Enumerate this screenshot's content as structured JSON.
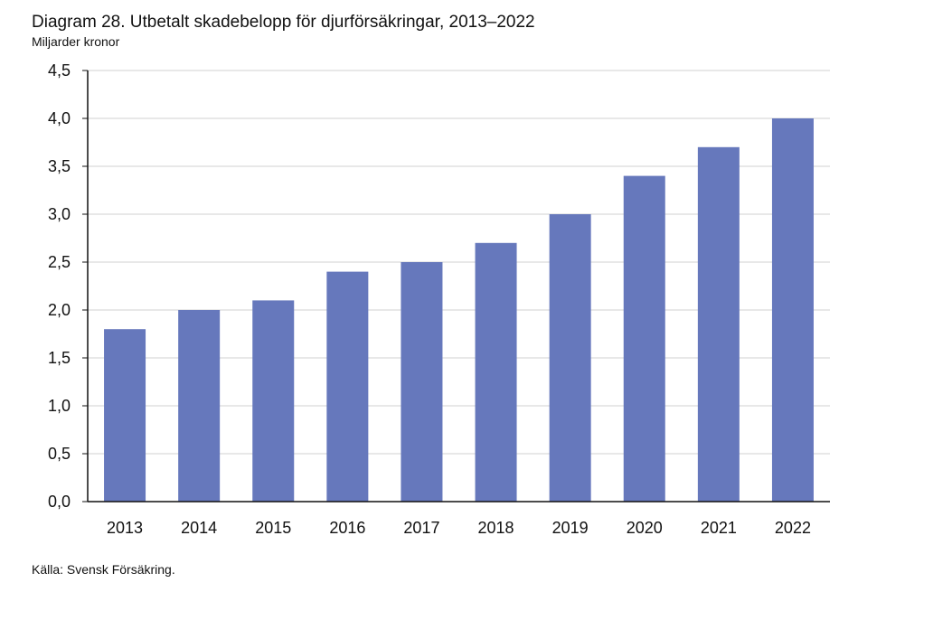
{
  "chart_data": {
    "type": "bar",
    "title": "Diagram 28. Utbetalt skadebelopp för djurförsäkringar, 2013–2022",
    "subtitle": "Miljarder kronor",
    "source": "Källa: Svensk Försäkring.",
    "categories": [
      "2013",
      "2014",
      "2015",
      "2016",
      "2017",
      "2018",
      "2019",
      "2020",
      "2021",
      "2022"
    ],
    "values": [
      1.8,
      2.0,
      2.1,
      2.4,
      2.5,
      2.7,
      3.0,
      3.4,
      3.7,
      4.0
    ],
    "ylim": [
      0,
      4.5
    ],
    "yticks": [
      "0,0",
      "0,5",
      "1,0",
      "1,5",
      "2,0",
      "2,5",
      "3,0",
      "3,5",
      "4,0",
      "4,5"
    ],
    "grid": true,
    "bar_color": "#6678bc",
    "gridline_color": "#d0d0d0"
  }
}
